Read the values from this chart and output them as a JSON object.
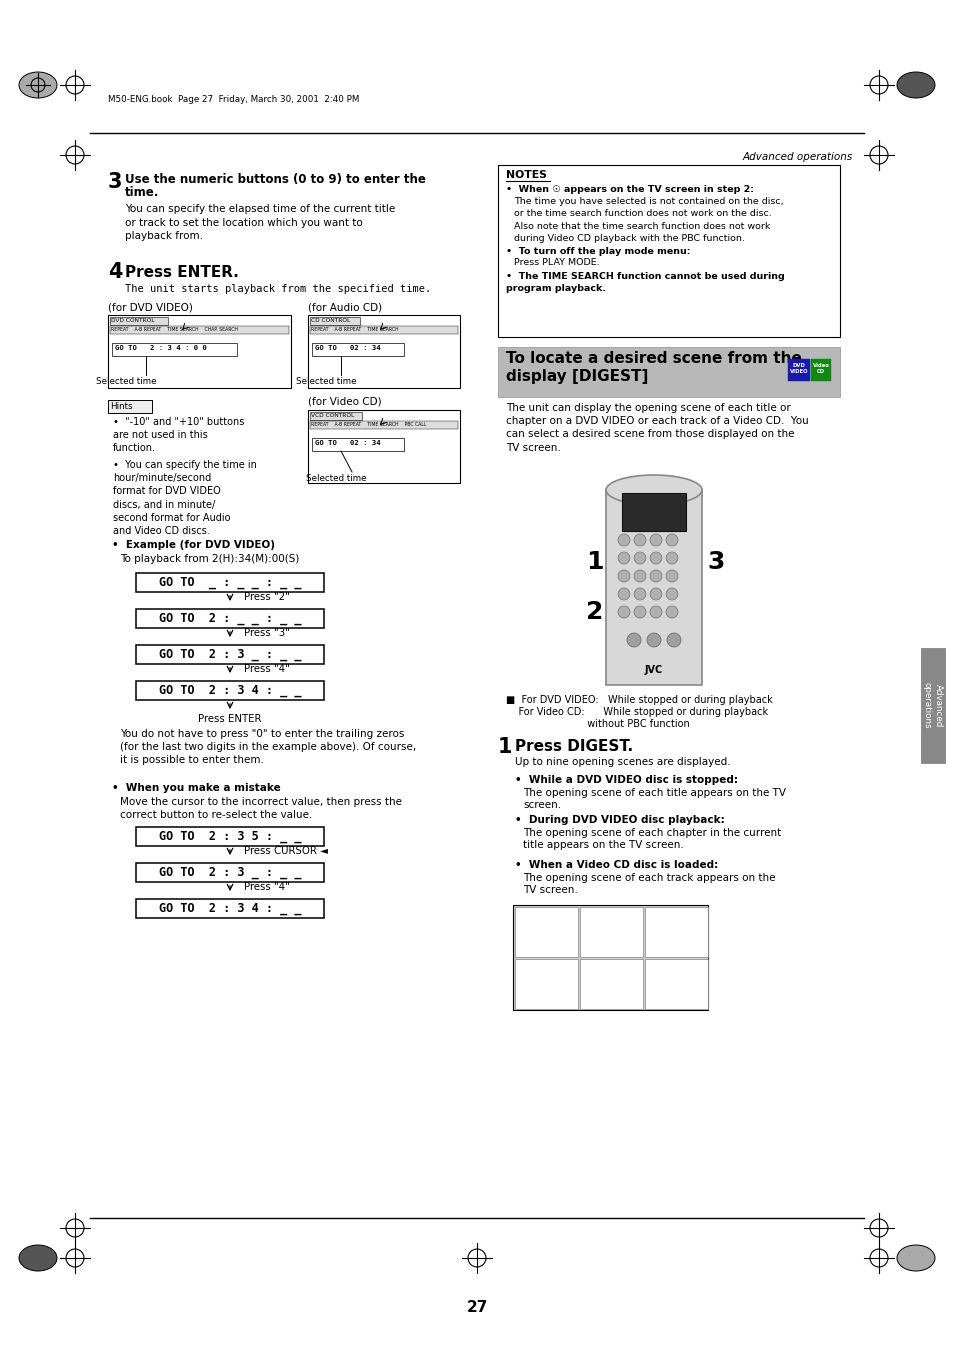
{
  "page_bg": "#ffffff",
  "page_num": "27",
  "header_text": "M50-ENG.book  Page 27  Friday, March 30, 2001  2:40 PM",
  "header_right": "Advanced operations",
  "step3_title_line1": "Use the numeric buttons (0 to 9) to enter the",
  "step3_title_line2": "time.",
  "step3_body": "You can specify the elapsed time of the current title\nor track to set the location which you want to\nplayback from.",
  "step4_title": "Press ENTER.",
  "step4_body": "The unit starts playback from the specified time.",
  "dvd_label": "(for DVD VIDEO)",
  "cd_label": "(for Audio CD)",
  "vcd_label": "(for Video CD)",
  "selected_time": "Selected time",
  "hint1": "\"-10\" and \"+10\" buttons\nare not used in this\nfunction.",
  "hint2": "You can specify the time in\nhour/minute/second\nformat for DVD VIDEO\ndiscs, and in minute/\nsecond format for Audio\nand Video CD discs.",
  "example_title": "Example (for DVD VIDEO)",
  "example_body": "To playback from 2(H):34(M):00(S)",
  "goto_steps": [
    "GO TO  _ : _ _ : _ _",
    "GO TO  2 : _ _ : _ _",
    "GO TO  2 : 3 _ : _ _",
    "GO TO  2 : 3 4 : _ _"
  ],
  "press_labels": [
    "Press \"2\"",
    "Press \"3\"",
    "Press \"4\""
  ],
  "press_enter": "Press ENTER",
  "mistake_title": "When you make a mistake",
  "mistake_body": "Move the cursor to the incorrect value, then press the\ncorrect button to re-select the value.",
  "mistake_steps": [
    "GO TO  2 : 3 5 : _ _",
    "GO TO  2 : 3 _ : _ _",
    "GO TO  2 : 3 4 : _ _"
  ],
  "mistake_labels": [
    "Press CURSOR ◄",
    "Press \"4\""
  ],
  "notes_title": "NOTES",
  "note1_bold": "When ☉ appears on the TV screen in step 2:",
  "note1_body1": "The time you have selected is not contained on the disc,\nor the time search function does not work on the disc.",
  "note1_body2": "Also note that the time search function does not work\nduring Video CD playback with the PBC function.",
  "note2_bold": "To turn off the play mode menu:",
  "note2_body": "Press PLAY MODE.",
  "note3_bold": "The TIME SEARCH function cannot be used during\nprogram playback.",
  "digest_title_line1": "To locate a desired scene from the",
  "digest_title_line2": "display [DIGEST]",
  "digest_body": "The unit can display the opening scene of each title or\nchapter on a DVD VIDEO or each track of a Video CD.  You\ncan select a desired scene from those displayed on the\nTV screen.",
  "playback_line1": "■  For DVD VIDEO:   While stopped or during playback",
  "playback_line2": "    For Video CD:      While stopped or during playback",
  "playback_line3": "                          without PBC function",
  "press_digest_title": "Press DIGEST.",
  "press_digest_body": "Up to nine opening scenes are displayed.",
  "digest_bullet1_bold": "While a DVD VIDEO disc is stopped:",
  "digest_bullet1_body": "The opening scene of each title appears on the TV\nscreen.",
  "digest_bullet2_bold": "During DVD VIDEO disc playback:",
  "digest_bullet2_body": "The opening scene of each chapter in the current\ntitle appears on the TV screen.",
  "digest_bullet3_bold": "When a Video CD disc is loaded:",
  "digest_bullet3_body": "The opening scene of each track appears on the\nTV screen.",
  "sidebar_text": "Advanced\noperations",
  "tab_color": "#888888",
  "body_text_after_goto": "You do not have to press \"0\" to enter the trailing zeros\n(for the last two digits in the example above). Of course,\nit is possible to enter them."
}
